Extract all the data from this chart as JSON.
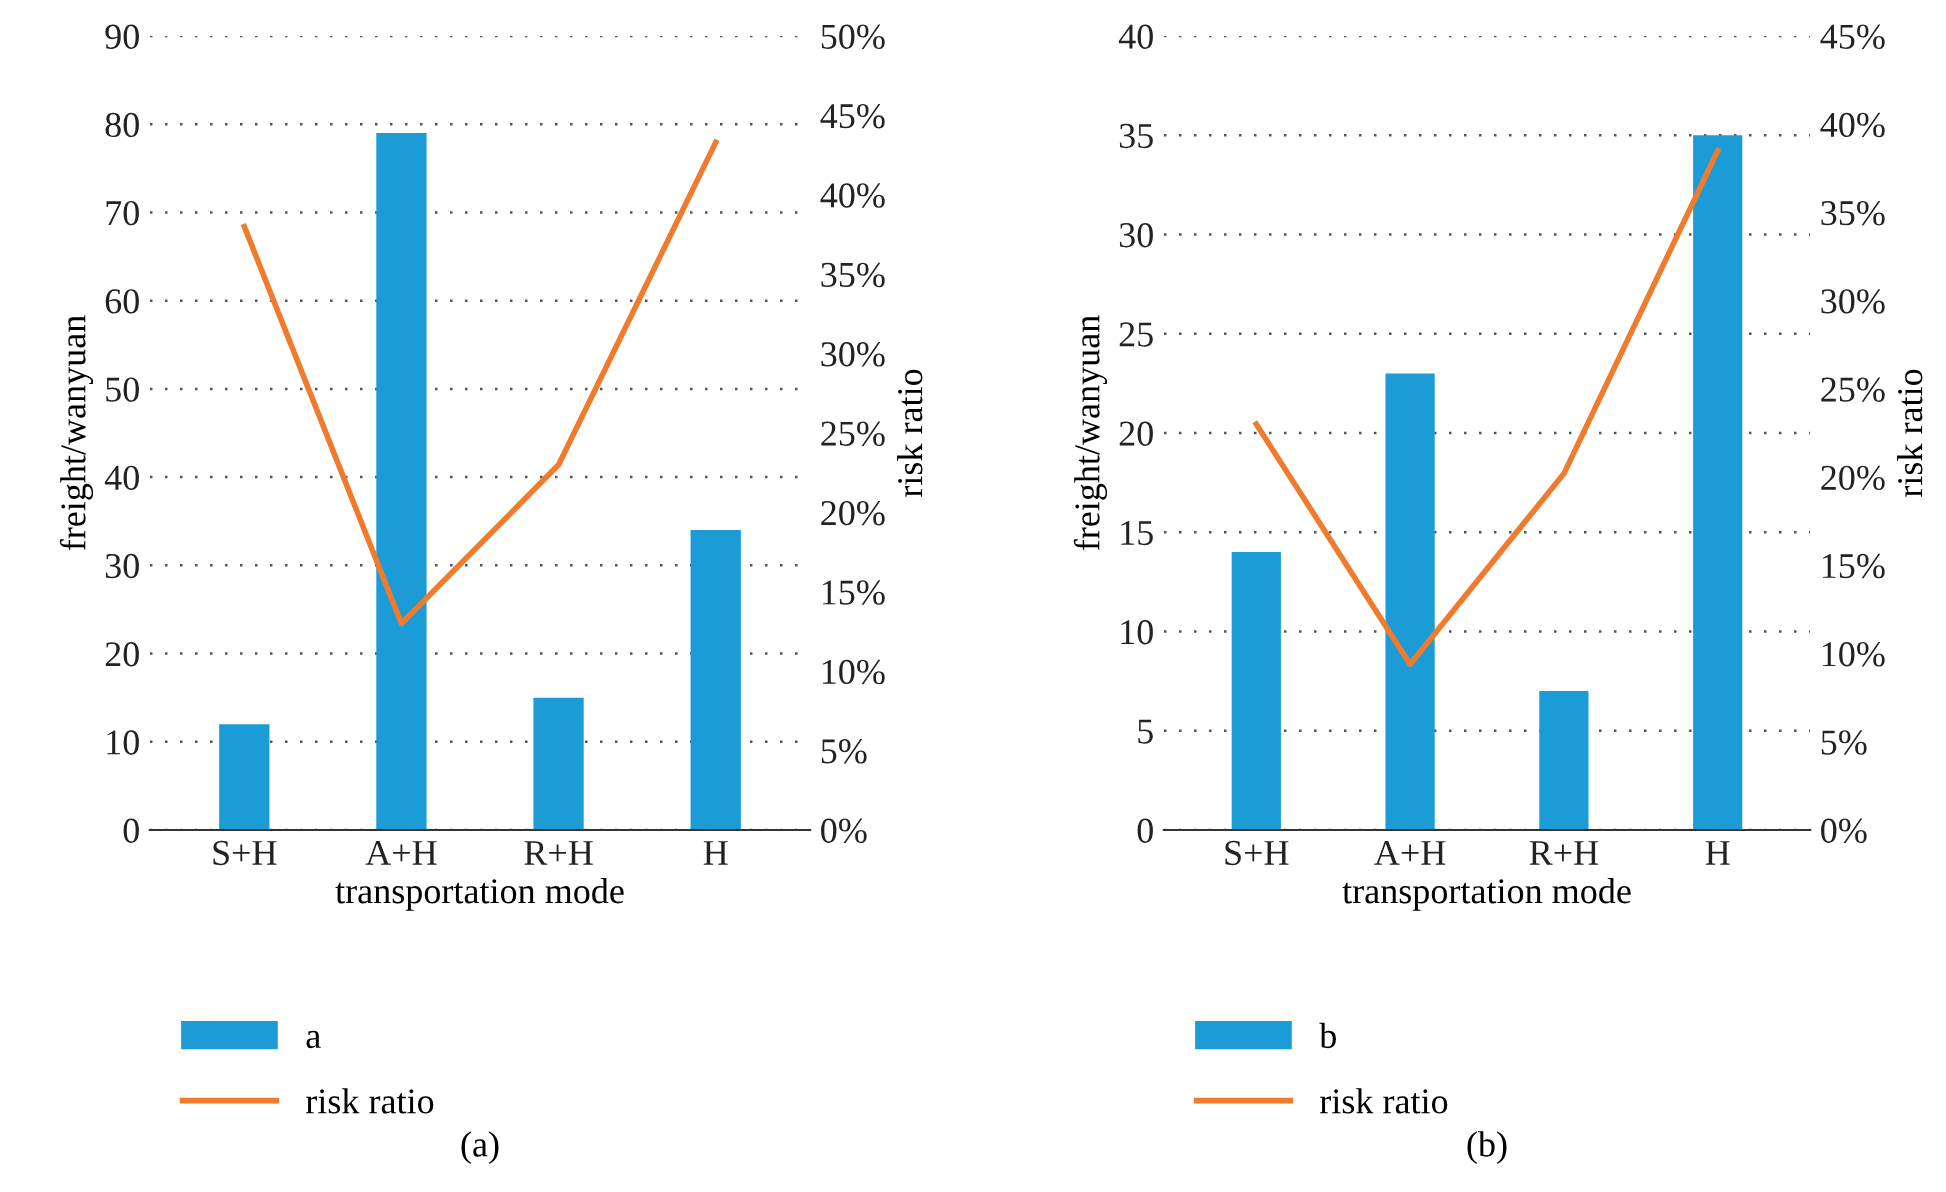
{
  "chart_data": [
    {
      "type": "bar",
      "categories": [
        "S+H",
        "A+H",
        "R+H",
        "H"
      ],
      "xlabel": "transportation mode",
      "ylabel": "freight/wanyuan",
      "y2label": "risk ratio",
      "series": [
        {
          "name": "a",
          "color": "#1c9cd7",
          "values": [
            12,
            79,
            15,
            34
          ]
        },
        {
          "name": "risk ratio",
          "type": "line",
          "axis": "y2",
          "color": "#f07b2c",
          "values": [
            38,
            13,
            23,
            43.3
          ]
        }
      ],
      "ylim": [
        0,
        90
      ],
      "yticks": [
        0,
        10,
        20,
        30,
        40,
        50,
        60,
        70,
        80,
        90
      ],
      "y2lim": [
        0,
        50
      ],
      "y2ticks": [
        {
          "value": 0,
          "label": "0%"
        },
        {
          "value": 5,
          "label": "5%"
        },
        {
          "value": 10,
          "label": "10%"
        },
        {
          "value": 15,
          "label": "15%"
        },
        {
          "value": 20,
          "label": "20%"
        },
        {
          "value": 25,
          "label": "25%"
        },
        {
          "value": 30,
          "label": "30%"
        },
        {
          "value": 35,
          "label": "35%"
        },
        {
          "value": 40,
          "label": "40%"
        },
        {
          "value": 45,
          "label": "45%"
        },
        {
          "value": 50,
          "label": "50%"
        }
      ],
      "grid": "y",
      "legend": "bottom",
      "marker": "none",
      "line_style": "solid",
      "annotations": [
        "(a)"
      ]
    },
    {
      "type": "bar",
      "categories": [
        "S+H",
        "A+H",
        "R+H",
        "H"
      ],
      "xlabel": "transportation mode",
      "ylabel": "freight/wanyuan",
      "y2label": "risk ratio",
      "series": [
        {
          "name": "b",
          "color": "#1c9cd7",
          "values": [
            14,
            23,
            7,
            35
          ]
        },
        {
          "name": "risk ratio",
          "type": "line",
          "axis": "y2",
          "color": "#f07b2c",
          "values": [
            23,
            9.4,
            20.2,
            38.5
          ]
        }
      ],
      "ylim": [
        0,
        40
      ],
      "yticks": [
        0,
        5,
        10,
        15,
        20,
        25,
        30,
        35,
        40
      ],
      "y2lim": [
        0,
        45
      ],
      "y2ticks": [
        {
          "value": 0,
          "label": "0%"
        },
        {
          "value": 5,
          "label": "5%"
        },
        {
          "value": 10,
          "label": "10%"
        },
        {
          "value": 15,
          "label": "15%"
        },
        {
          "value": 20,
          "label": "20%"
        },
        {
          "value": 25,
          "label": "25%"
        },
        {
          "value": 30,
          "label": "30%"
        },
        {
          "value": 35,
          "label": "35%"
        },
        {
          "value": 40,
          "label": "40%"
        },
        {
          "value": 45,
          "label": "45%"
        }
      ],
      "grid": "y",
      "legend": "bottom",
      "marker": "none",
      "line_style": "solid",
      "annotations": [
        "(b)"
      ]
    }
  ]
}
